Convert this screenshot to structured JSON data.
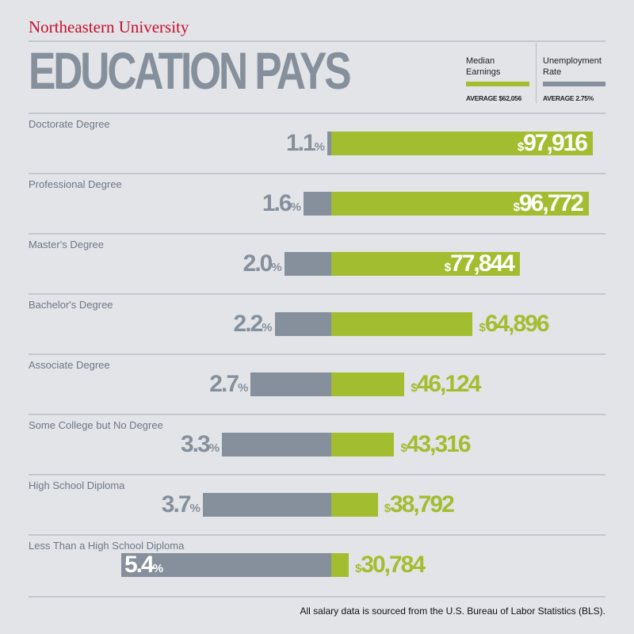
{
  "brand": "Northeastern University",
  "title": "EDUCATION PAYS",
  "legend": {
    "earnings": {
      "label_line1": "Median",
      "label_line2": "Earnings",
      "average": "AVERAGE $62,056",
      "color": "#a3bd31"
    },
    "unemployment": {
      "label_line1": "Unemployment",
      "label_line2": "Rate",
      "average": "AVERAGE 2.75%",
      "color": "#86909c"
    }
  },
  "chart_data": {
    "type": "bar",
    "title": "EDUCATION PAYS",
    "categories": [
      "Doctorate Degree",
      "Professional Degree",
      "Master's Degree",
      "Bachelor's Degree",
      "Associate Degree",
      "Some College but No Degree",
      "High School Diploma",
      "Less Than a High School Diploma"
    ],
    "series": [
      {
        "name": "Median Earnings",
        "unit": "$",
        "values": [
          97916,
          96772,
          77844,
          64896,
          46124,
          43316,
          38792,
          30784
        ],
        "labels": [
          "97,916",
          "96,772",
          "77,844",
          "64,896",
          "46,124",
          "43,316",
          "38,792",
          "30,784"
        ],
        "color": "#a3bd31"
      },
      {
        "name": "Unemployment Rate",
        "unit": "%",
        "values": [
          1.1,
          1.6,
          2.0,
          2.2,
          2.7,
          3.3,
          3.7,
          5.4
        ],
        "labels": [
          "1.1",
          "1.6",
          "2.0",
          "2.2",
          "2.7",
          "3.3",
          "3.7",
          "5.4"
        ],
        "color": "#86909c"
      }
    ],
    "orientation": "horizontal-diverging"
  },
  "footnote": "All salary data is sourced from the U.S. Bureau of Labor Statistics (BLS)."
}
